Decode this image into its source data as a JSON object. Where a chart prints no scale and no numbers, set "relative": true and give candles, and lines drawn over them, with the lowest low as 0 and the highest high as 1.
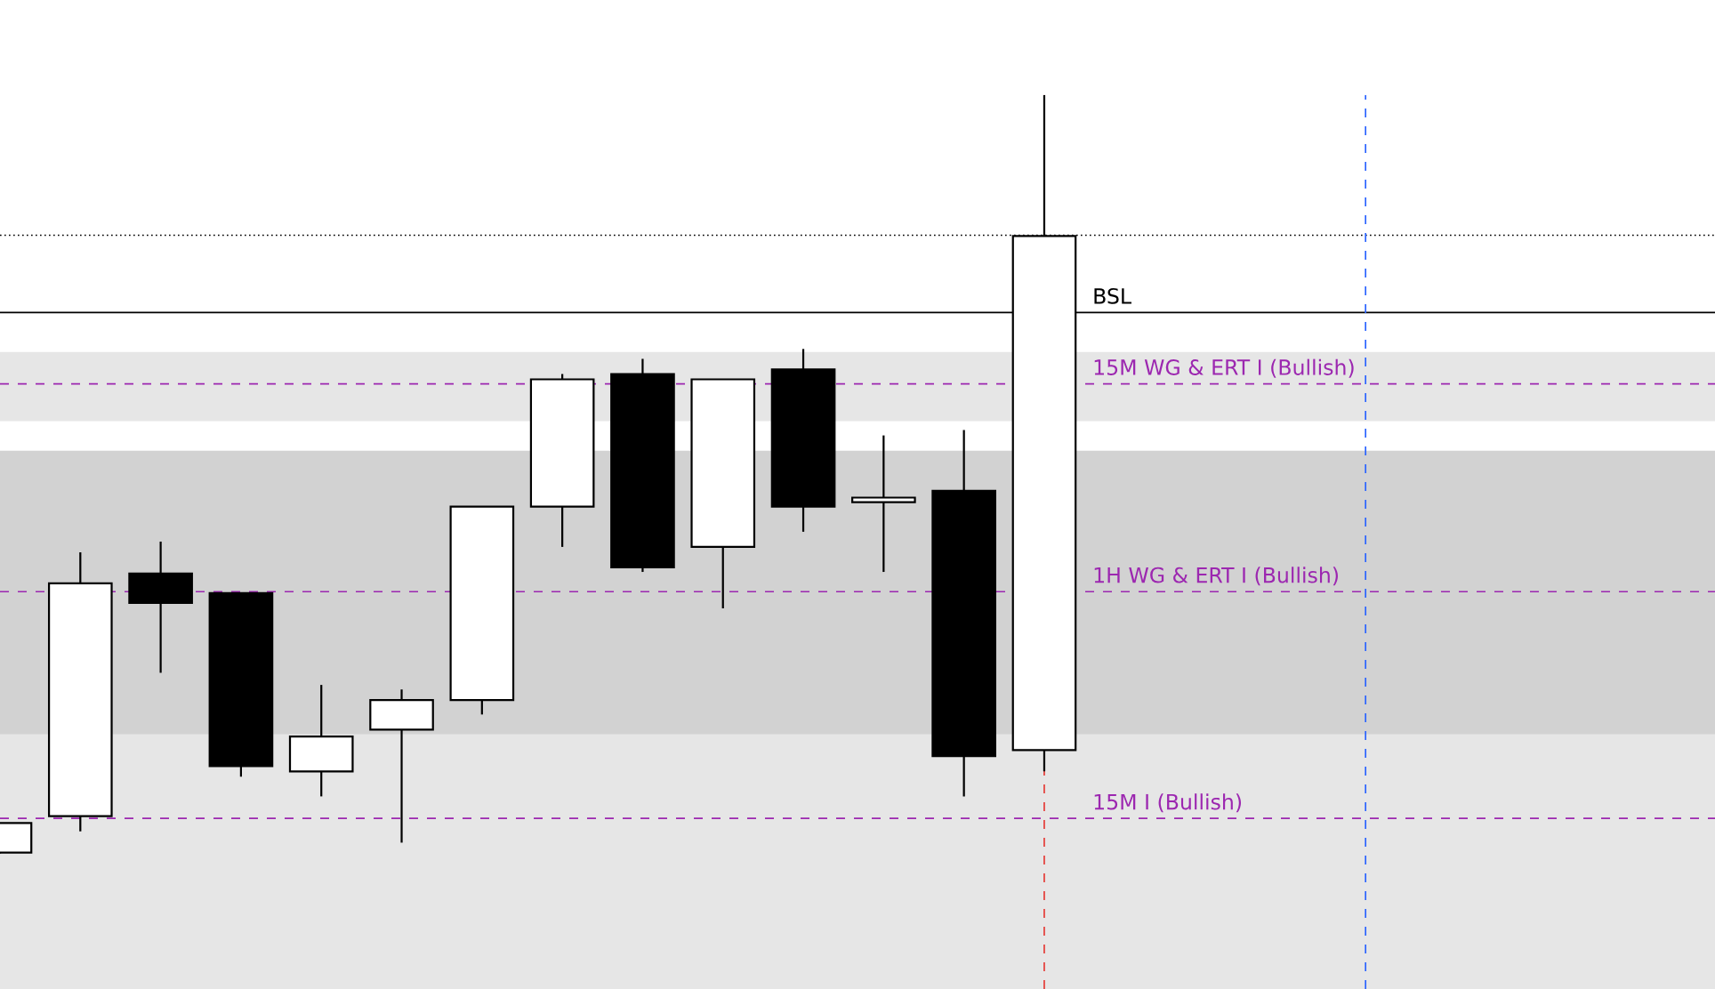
{
  "chart_data": {
    "type": "candlestick",
    "relative": true,
    "categories": [
      null,
      null,
      null,
      null,
      null,
      null,
      null,
      null,
      null,
      null,
      null,
      null,
      null,
      null,
      null,
      null,
      null,
      null,
      null,
      null,
      null,
      null
    ],
    "ohlc": [
      [
        0.001,
        0.04,
        0.0,
        0.04
      ],
      [
        0.049,
        0.397,
        0.029,
        0.356
      ],
      [
        0.369,
        0.411,
        0.238,
        0.33
      ],
      [
        0.343,
        0.343,
        0.101,
        0.115
      ],
      [
        0.108,
        0.222,
        0.075,
        0.154
      ],
      [
        0.163,
        0.216,
        0.014,
        0.202
      ],
      [
        0.202,
        0.457,
        0.183,
        0.457
      ],
      [
        0.457,
        0.632,
        0.404,
        0.625
      ],
      [
        0.632,
        0.652,
        0.371,
        0.377
      ],
      [
        0.404,
        0.625,
        0.323,
        0.625
      ],
      [
        0.638,
        0.665,
        0.424,
        0.457
      ],
      [
        0.463,
        0.551,
        0.371,
        0.469
      ],
      [
        0.478,
        0.558,
        0.075,
        0.128
      ],
      [
        0.136,
        1.0,
        0.108,
        0.814
      ],
      null,
      null,
      null,
      null,
      null,
      null,
      null,
      null
    ],
    "grid": false,
    "ref_lines": [
      {
        "axis": "y",
        "value": 0.815,
        "color": "#000000",
        "line_style": "dotted",
        "label": null
      },
      {
        "axis": "y",
        "value": 0.713,
        "color": "#000000",
        "line_style": "solid",
        "label": "BSL"
      },
      {
        "axis": "y",
        "value": 0.619,
        "color": "#9c27b0",
        "line_style": "dashed",
        "label": "15M WG & ERT I (Bullish)"
      },
      {
        "axis": "y",
        "value": 0.345,
        "color": "#9c27b0",
        "line_style": "dashed",
        "label": "1H WG & ERT I (Bullish)"
      },
      {
        "axis": "y",
        "value": 0.046,
        "color": "#9c27b0",
        "line_style": "dashed",
        "label": "15M I (Bullish)"
      }
    ],
    "bands": [
      {
        "axis": "y",
        "from": -0.179,
        "to": 0.382,
        "color": "#e6e6e6"
      },
      {
        "axis": "y",
        "from": 0.157,
        "to": 0.531,
        "color": "#d2d2d2"
      },
      {
        "axis": "y",
        "from": 0.57,
        "to": 0.661,
        "color": "#e6e6e6"
      }
    ]
  }
}
